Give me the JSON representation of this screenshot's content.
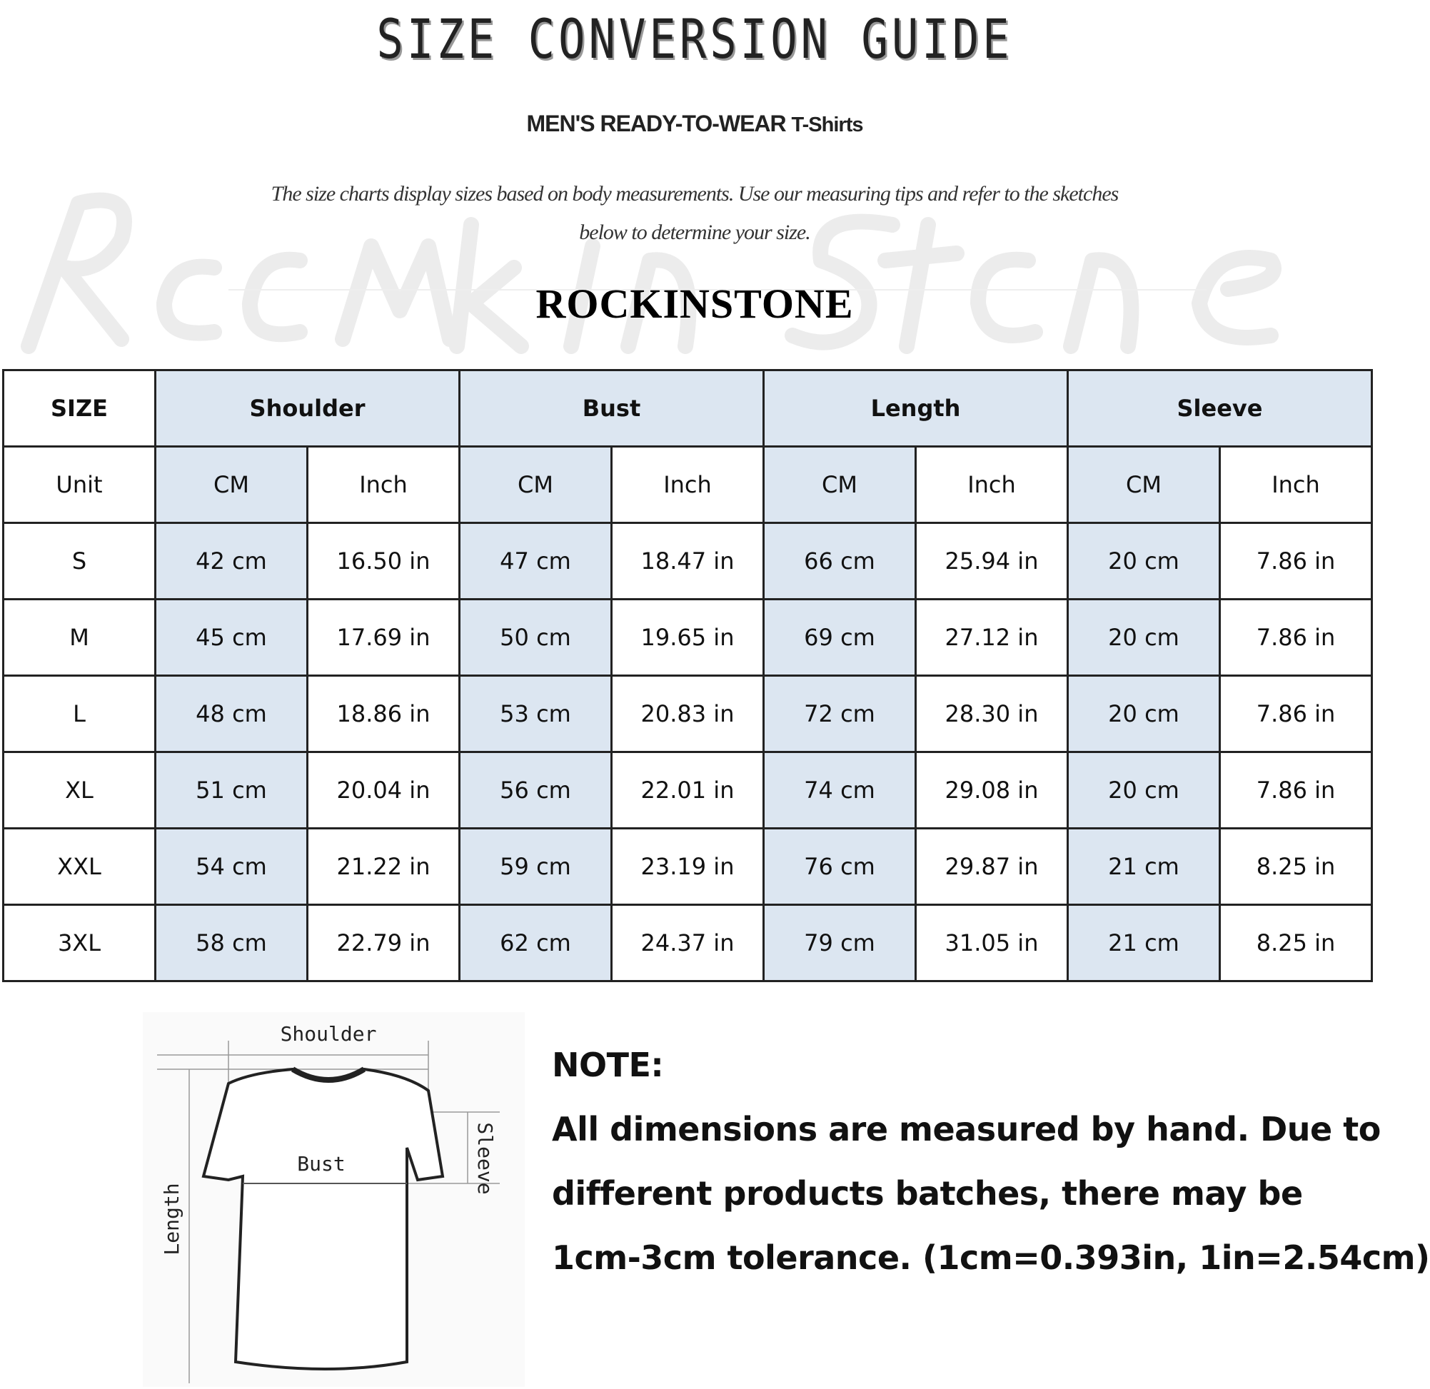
{
  "header": {
    "title": "SIZE CONVERSION GUIDE",
    "subtitle_main": "MEN'S READY-TO-WEAR",
    "subtitle_product": "T-Shirts",
    "intro_line1": "The size charts display sizes based on body measurements. Use our measuring tips and refer to the sketches",
    "intro_line2": "below to determine your size.",
    "watermark": "Rock in stone",
    "brand": "ROCKINSTONE"
  },
  "table": {
    "group_headers": [
      "SIZE",
      "Shoulder",
      "Bust",
      "Length",
      "Sleeve"
    ],
    "unit_row": [
      "Unit",
      "CM",
      "Inch",
      "CM",
      "Inch",
      "CM",
      "Inch",
      "CM",
      "Inch"
    ],
    "rows": [
      [
        "S",
        "42 cm",
        "16.50 in",
        "47 cm",
        "18.47  in",
        "66 cm",
        "25.94  in",
        "20 cm",
        "7.86  in"
      ],
      [
        "M",
        "45 cm",
        "17.69  in",
        "50 cm",
        "19.65  in",
        "69 cm",
        "27.12  in",
        "20 cm",
        "7.86  in"
      ],
      [
        "L",
        "48 cm",
        "18.86  in",
        "53 cm",
        "20.83  in",
        "72 cm",
        "28.30  in",
        "20 cm",
        "7.86  in"
      ],
      [
        "XL",
        "51 cm",
        "20.04  in",
        "56 cm",
        "22.01  in",
        "74 cm",
        "29.08  in",
        "20 cm",
        "7.86  in"
      ],
      [
        "XXL",
        "54 cm",
        "21.22  in",
        "59 cm",
        "23.19  in",
        "76 cm",
        "29.87  in",
        "21 cm",
        "8.25  in"
      ],
      [
        "3XL",
        "58 cm",
        "22.79  in",
        "62 cm",
        "24.37  in",
        "79 cm",
        "31.05  in",
        "21 cm",
        "8.25  in"
      ]
    ],
    "colors": {
      "highlight": "#dce6f1",
      "border": "#222222"
    }
  },
  "sketch": {
    "labels": {
      "shoulder": "Shoulder",
      "bust": "Bust",
      "length": "Length",
      "sleeve": "Sleeve"
    }
  },
  "note": {
    "heading": "NOTE:",
    "lines": [
      "All dimensions are measured by hand. Due to",
      "different products batches, there may be",
      "1cm-3cm tolerance. (1cm=0.393in, 1in=2.54cm)"
    ]
  }
}
